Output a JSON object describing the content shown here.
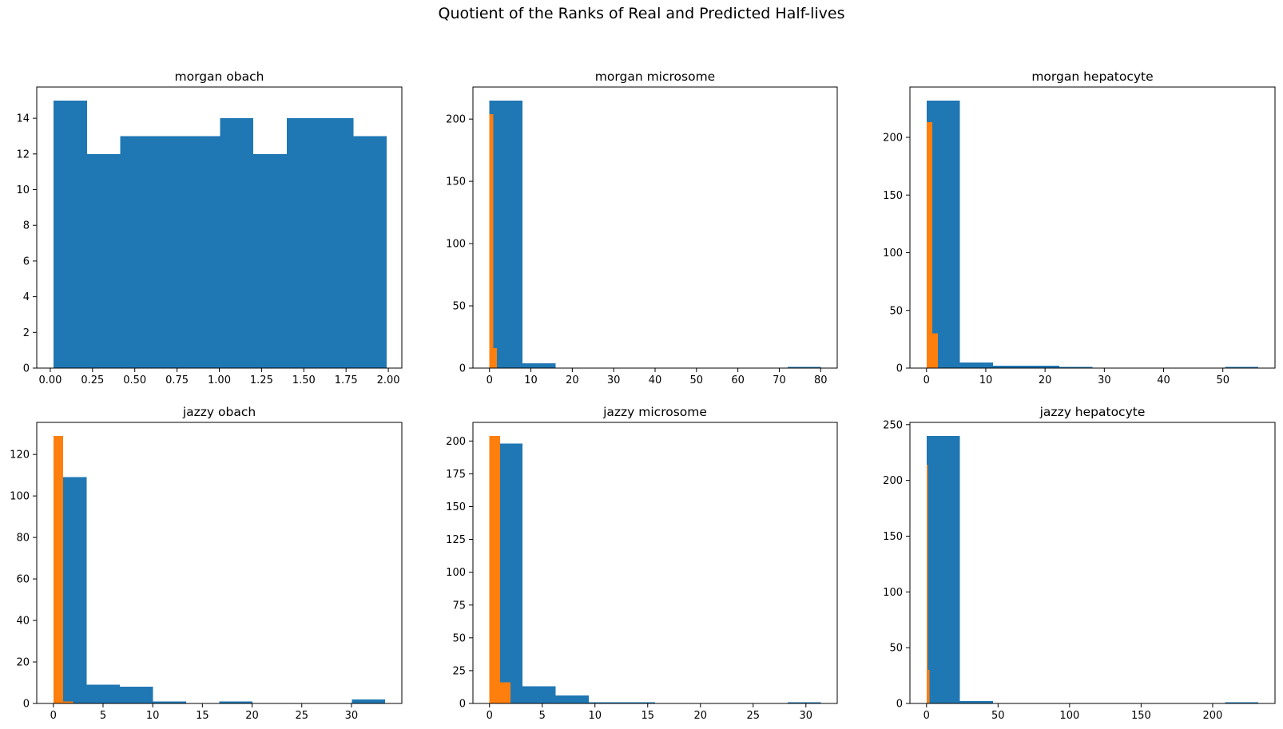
{
  "figure": {
    "title": "Quotient of the Ranks of Real and Predicted Half-lives",
    "colors": {
      "blue": "#1f77b4",
      "orange": "#ff7f0e"
    }
  },
  "chart_data": [
    {
      "type": "bar",
      "title": "morgan obach",
      "xlim": [
        -0.08,
        2.08
      ],
      "ylim": [
        0,
        15.75
      ],
      "xticks": [
        0.0,
        0.25,
        0.5,
        0.75,
        1.0,
        1.25,
        1.5,
        1.75,
        2.0
      ],
      "xtick_labels": [
        "0.00",
        "0.25",
        "0.50",
        "0.75",
        "1.00",
        "1.25",
        "1.50",
        "1.75",
        "2.00"
      ],
      "yticks": [
        0,
        2,
        4,
        6,
        8,
        10,
        12,
        14
      ],
      "series": [
        {
          "color": "#1f77b4",
          "bins": [
            0.02,
            0.217,
            0.414,
            0.611,
            0.808,
            1.005,
            1.202,
            1.399,
            1.596,
            1.793,
            1.99
          ],
          "counts": [
            15,
            12,
            13,
            13,
            13,
            14,
            12,
            14,
            14,
            13
          ]
        }
      ]
    },
    {
      "type": "bar",
      "title": "morgan microsome",
      "xlim": [
        -4,
        84
      ],
      "ylim": [
        0,
        225.75
      ],
      "xticks": [
        0,
        10,
        20,
        30,
        40,
        50,
        60,
        70,
        80
      ],
      "xtick_labels": [
        "0",
        "10",
        "20",
        "30",
        "40",
        "50",
        "60",
        "70",
        "80"
      ],
      "yticks": [
        0,
        50,
        100,
        150,
        200
      ],
      "series": [
        {
          "color": "#1f77b4",
          "bins": [
            0,
            8,
            16,
            24,
            32,
            40,
            48,
            56,
            64,
            72,
            80
          ],
          "counts": [
            215,
            4,
            0,
            0,
            0,
            0,
            0,
            0,
            0,
            1
          ]
        },
        {
          "color": "#ff7f0e",
          "bins": [
            0,
            0.9,
            1.8
          ],
          "counts": [
            204,
            16
          ]
        }
      ]
    },
    {
      "type": "bar",
      "title": "morgan hepatocyte",
      "xlim": [
        -2.8,
        58.8
      ],
      "ylim": [
        0,
        243.6
      ],
      "xticks": [
        0,
        10,
        20,
        30,
        40,
        50
      ],
      "xtick_labels": [
        "0",
        "10",
        "20",
        "30",
        "40",
        "50"
      ],
      "yticks": [
        0,
        50,
        100,
        150,
        200
      ],
      "series": [
        {
          "color": "#1f77b4",
          "bins": [
            0,
            5.6,
            11.2,
            16.8,
            22.4,
            28,
            33.6,
            39.2,
            44.8,
            50.4,
            56
          ],
          "counts": [
            232,
            5,
            2,
            2,
            1,
            0,
            0,
            0,
            0,
            1
          ]
        },
        {
          "color": "#ff7f0e",
          "bins": [
            0,
            0.95,
            1.9
          ],
          "counts": [
            213,
            30
          ]
        }
      ]
    },
    {
      "type": "bar",
      "title": "jazzy obach",
      "xlim": [
        -1.67,
        35.07
      ],
      "ylim": [
        0,
        135.45
      ],
      "xticks": [
        0,
        5,
        10,
        15,
        20,
        25,
        30
      ],
      "xtick_labels": [
        "0",
        "5",
        "10",
        "15",
        "20",
        "25",
        "30"
      ],
      "yticks": [
        0,
        20,
        40,
        60,
        80,
        100,
        120
      ],
      "series": [
        {
          "color": "#1f77b4",
          "bins": [
            0,
            3.34,
            6.68,
            10.02,
            13.36,
            16.7,
            20.04,
            23.38,
            26.72,
            30.06,
            33.4
          ],
          "counts": [
            109,
            9,
            8,
            1,
            0,
            1,
            0,
            0,
            0,
            2
          ]
        },
        {
          "color": "#ff7f0e",
          "bins": [
            0,
            1.0,
            2.0
          ],
          "counts": [
            129,
            1
          ]
        }
      ]
    },
    {
      "type": "bar",
      "title": "jazzy microsome",
      "xlim": [
        -1.57,
        32.97
      ],
      "ylim": [
        0,
        214.2
      ],
      "xticks": [
        0,
        5,
        10,
        15,
        20,
        25,
        30
      ],
      "xtick_labels": [
        "0",
        "5",
        "10",
        "15",
        "20",
        "25",
        "30"
      ],
      "yticks": [
        0,
        25,
        50,
        75,
        100,
        125,
        150,
        175,
        200
      ],
      "series": [
        {
          "color": "#1f77b4",
          "bins": [
            0,
            3.14,
            6.28,
            9.42,
            12.56,
            15.7,
            18.84,
            21.98,
            25.12,
            28.26,
            31.4
          ],
          "counts": [
            198,
            13,
            6,
            1,
            1,
            0,
            0,
            0,
            0,
            1
          ]
        },
        {
          "color": "#ff7f0e",
          "bins": [
            0,
            1.0,
            2.0
          ],
          "counts": [
            204,
            16
          ]
        }
      ]
    },
    {
      "type": "bar",
      "title": "jazzy hepatocyte",
      "xlim": [
        -11.6,
        243.6
      ],
      "ylim": [
        0,
        252
      ],
      "xticks": [
        0,
        50,
        100,
        150,
        200
      ],
      "xtick_labels": [
        "0",
        "50",
        "100",
        "150",
        "200"
      ],
      "yticks": [
        0,
        50,
        100,
        150,
        200,
        250
      ],
      "series": [
        {
          "color": "#1f77b4",
          "bins": [
            0,
            23.2,
            46.4,
            69.6,
            92.8,
            116,
            139.2,
            162.4,
            185.6,
            208.8,
            232
          ],
          "counts": [
            240,
            2,
            0,
            0,
            0,
            0,
            0,
            0,
            0,
            1
          ]
        },
        {
          "color": "#ff7f0e",
          "bins": [
            0,
            1.0,
            2.0
          ],
          "counts": [
            214,
            30
          ]
        }
      ]
    }
  ]
}
